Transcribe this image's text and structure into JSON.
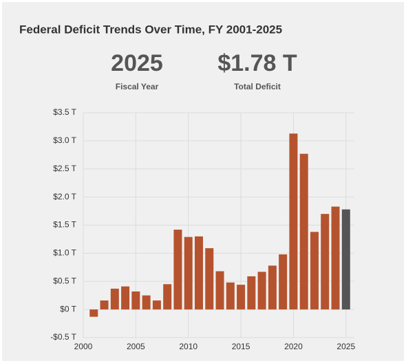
{
  "header": {
    "title": "Federal Deficit Trends Over Time, FY 2001-2025"
  },
  "kpis": [
    {
      "value": "2025",
      "label": "Fiscal Year"
    },
    {
      "value": "$1.78 T",
      "label": "Total Deficit"
    }
  ],
  "chart_data": {
    "type": "bar",
    "x": [
      2001,
      2002,
      2003,
      2004,
      2005,
      2006,
      2007,
      2008,
      2009,
      2010,
      2011,
      2012,
      2013,
      2014,
      2015,
      2016,
      2017,
      2018,
      2019,
      2020,
      2021,
      2022,
      2023,
      2024,
      2025
    ],
    "values": [
      -0.13,
      0.16,
      0.37,
      0.41,
      0.32,
      0.25,
      0.16,
      0.45,
      1.42,
      1.29,
      1.3,
      1.09,
      0.68,
      0.48,
      0.44,
      0.59,
      0.67,
      0.78,
      0.98,
      3.13,
      2.77,
      1.38,
      1.7,
      1.83,
      1.78
    ],
    "colors": [
      "#b5532f",
      "#b5532f",
      "#b5532f",
      "#b5532f",
      "#b5532f",
      "#b5532f",
      "#b5532f",
      "#b5532f",
      "#b5532f",
      "#b5532f",
      "#b5532f",
      "#b5532f",
      "#b5532f",
      "#b5532f",
      "#b5532f",
      "#b5532f",
      "#b5532f",
      "#b5532f",
      "#b5532f",
      "#b5532f",
      "#b5532f",
      "#b5532f",
      "#b5532f",
      "#b5532f",
      "#555555"
    ],
    "xlim": [
      2000,
      2025.8
    ],
    "xticks": [
      2000,
      2005,
      2010,
      2015,
      2020,
      2025
    ],
    "ylim": [
      -0.5,
      3.5
    ],
    "yticks": [
      {
        "value": -0.5,
        "label": "-$0.5 T"
      },
      {
        "value": 0,
        "label": "$0 T"
      },
      {
        "value": 0.5,
        "label": "$0.5 T"
      },
      {
        "value": 1,
        "label": "$1.0 T"
      },
      {
        "value": 1.5,
        "label": "$1.5 T"
      },
      {
        "value": 2,
        "label": "$2.0 T"
      },
      {
        "value": 2.5,
        "label": "$2.5 T"
      },
      {
        "value": 3,
        "label": "$3.0 T"
      },
      {
        "value": 3.5,
        "label": "$3.5 T"
      }
    ],
    "grid": true
  }
}
